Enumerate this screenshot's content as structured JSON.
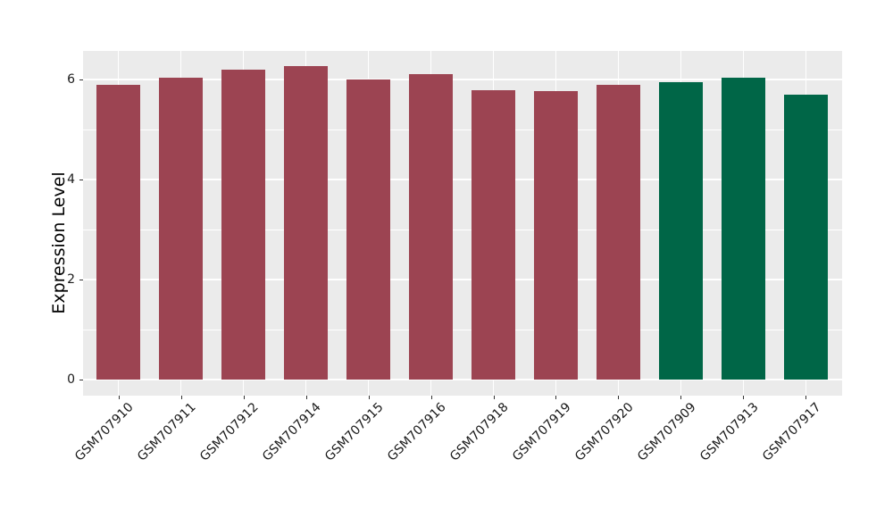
{
  "chart_data": {
    "type": "bar",
    "title": "",
    "xlabel": "",
    "ylabel": "Expression Level",
    "categories": [
      "GSM707910",
      "GSM707911",
      "GSM707912",
      "GSM707914",
      "GSM707915",
      "GSM707916",
      "GSM707918",
      "GSM707919",
      "GSM707920",
      "GSM707909",
      "GSM707913",
      "GSM707917"
    ],
    "values": [
      5.9,
      6.04,
      6.19,
      6.27,
      6.0,
      6.11,
      5.79,
      5.77,
      5.9,
      5.95,
      6.04,
      5.7
    ],
    "bar_colors": [
      "#9C4452",
      "#9C4452",
      "#9C4452",
      "#9C4452",
      "#9C4452",
      "#9C4452",
      "#9C4452",
      "#9C4452",
      "#9C4452",
      "#006647",
      "#006647",
      "#006647"
    ],
    "group_colors": {
      "group1": "#9C4452",
      "group2": "#006647"
    },
    "yticks": [
      0,
      2,
      4,
      6
    ],
    "yticks_minor": [
      1,
      3,
      5
    ],
    "ylim": [
      -0.32,
      6.57
    ],
    "grid": "on",
    "legend": "none",
    "panel_background": "#EBEBEB",
    "grid_color": "#FFFFFF",
    "tick_color": "#333333",
    "tick_label_color": "#1a1a1a"
  }
}
